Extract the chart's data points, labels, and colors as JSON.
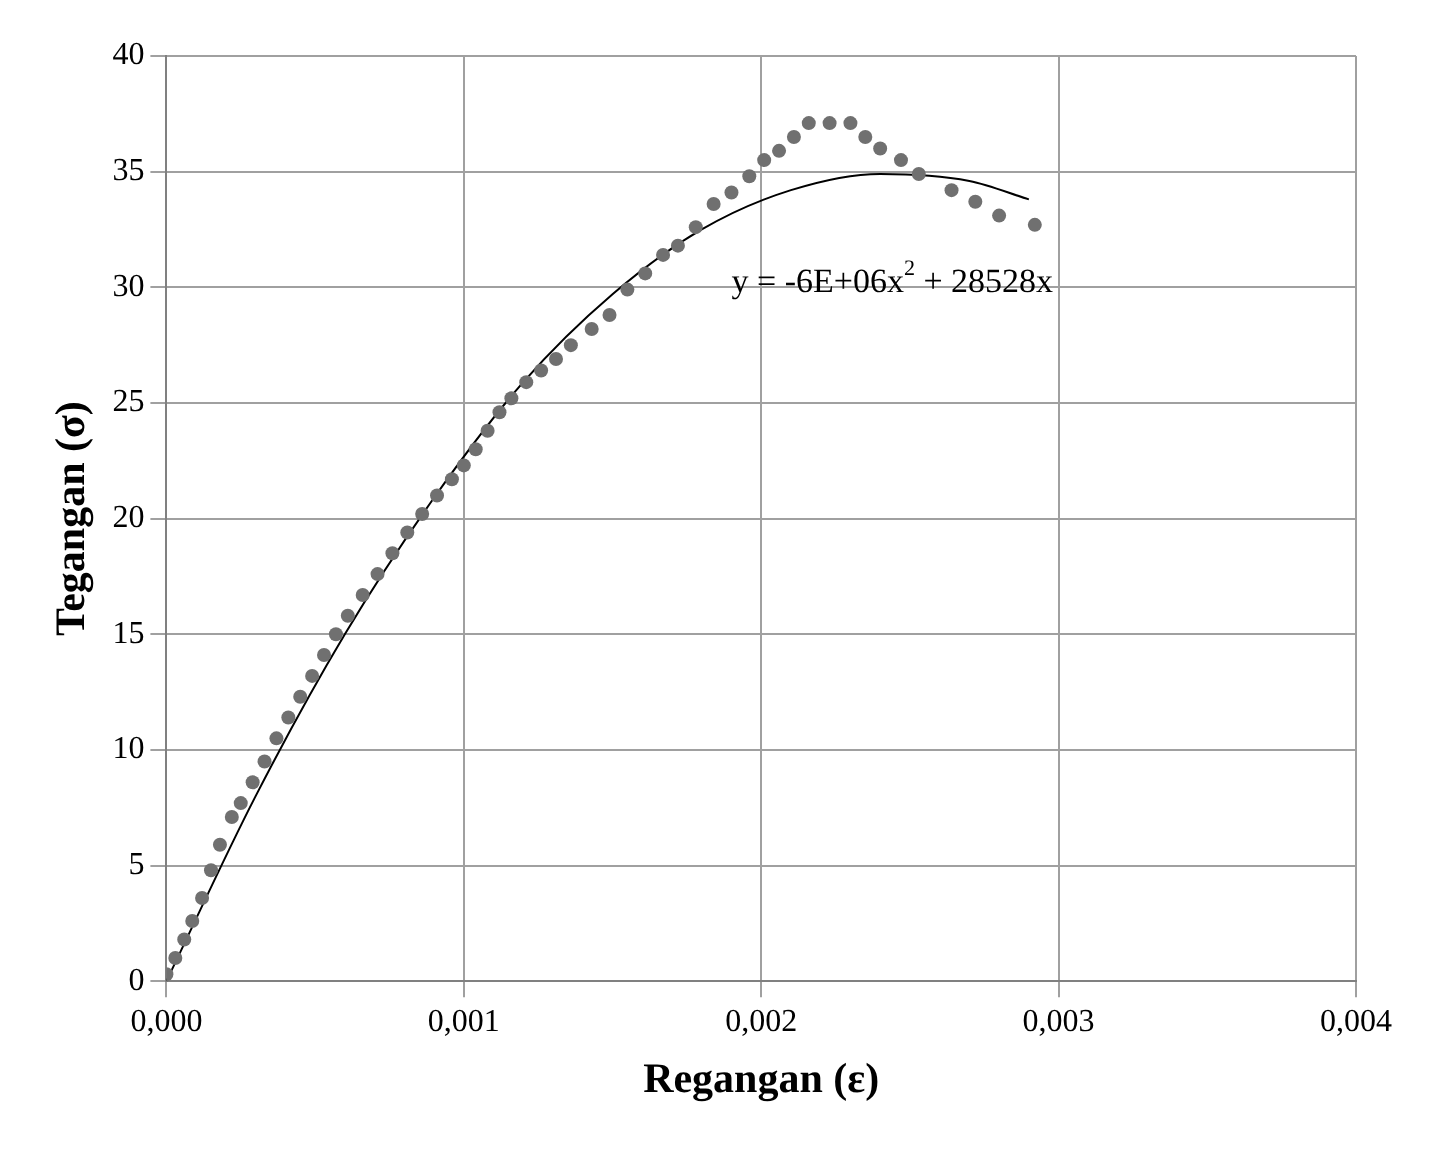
{
  "chart_data": {
    "type": "scatter",
    "xlabel": "Regangan (ε)",
    "ylabel": "Tegangan (σ)",
    "xlim": [
      0,
      0.004
    ],
    "xticks": [
      {
        "value": 0,
        "label": "0,000"
      },
      {
        "value": 0.001,
        "label": "0,001"
      },
      {
        "value": 0.002,
        "label": "0,002"
      },
      {
        "value": 0.003,
        "label": "0,003"
      },
      {
        "value": 0.004,
        "label": "0,004"
      }
    ],
    "ylim": [
      0,
      40
    ],
    "yticks": [
      0,
      5,
      10,
      15,
      20,
      25,
      30,
      35,
      40
    ],
    "grid": true,
    "legend": false,
    "series": [
      {
        "color": "#707070",
        "marker": "circle",
        "x": [
          0,
          3e-05,
          6e-05,
          8.7e-05,
          0.00012,
          0.00015,
          0.00018,
          0.00022,
          0.00025,
          0.00029,
          0.00033,
          0.00037,
          0.00041,
          0.00045,
          0.00049,
          0.00053,
          0.00057,
          0.00061,
          0.00066,
          0.00071,
          0.00076,
          0.00081,
          0.00086,
          0.00091,
          0.00096,
          0.001,
          0.00104,
          0.00108,
          0.00112,
          0.00116,
          0.00121,
          0.00126,
          0.00131,
          0.00136,
          0.00143,
          0.00149,
          0.00155,
          0.00161,
          0.00167,
          0.00172,
          0.00178,
          0.00184,
          0.0019,
          0.00196,
          0.00201,
          0.00206,
          0.00211,
          0.00216,
          0.00223,
          0.0023,
          0.00235,
          0.0024,
          0.00247,
          0.00253,
          0.00264,
          0.00272,
          0.0028,
          0.00292
        ],
        "values": [
          0.3,
          1.0,
          1.8,
          2.6,
          3.6,
          4.8,
          5.9,
          7.1,
          7.7,
          8.6,
          9.5,
          10.5,
          11.4,
          12.3,
          13.2,
          14.1,
          15.0,
          15.8,
          16.7,
          17.6,
          18.5,
          19.4,
          20.2,
          21.0,
          21.7,
          22.3,
          23.0,
          23.8,
          24.6,
          25.2,
          25.9,
          26.4,
          26.9,
          27.5,
          28.2,
          28.8,
          29.9,
          30.6,
          31.4,
          31.8,
          32.6,
          33.6,
          34.1,
          34.8,
          35.5,
          35.9,
          36.5,
          37.1,
          37.1,
          37.1,
          36.5,
          36.0,
          35.5,
          34.9,
          34.2,
          33.7,
          33.1,
          32.7
        ]
      },
      {
        "type": "line",
        "color": "#000000",
        "marker": "none",
        "line_style": "solid",
        "x": [
          0,
          0.0003,
          0.0006,
          0.0009,
          0.0012,
          0.0015,
          0.0018,
          0.0021,
          0.0024,
          0.0027,
          0.0029
        ],
        "values": [
          0,
          8.0,
          15.0,
          20.9,
          25.9,
          29.7,
          32.5,
          34.2,
          34.9,
          34.6,
          33.8
        ]
      }
    ],
    "annotations": [
      "y = -6E+06x$^{2}$ + 28528x"
    ]
  }
}
